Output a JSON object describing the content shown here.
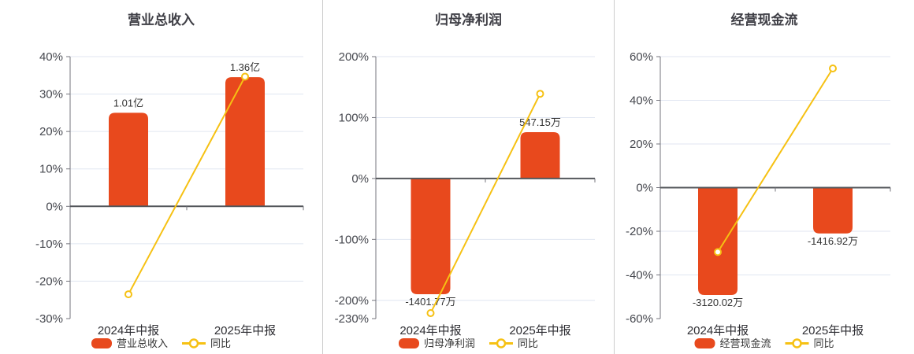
{
  "page": {
    "background": "#ffffff",
    "divider_color": "#cccccc"
  },
  "colors": {
    "bar": "#E8491D",
    "line": "#F6C113",
    "marker_fill": "#ffffff",
    "zero_axis": "#54575B",
    "grid": "#E0E6F1",
    "axis": "#75757D",
    "ytick_text": "#46484F",
    "xlabel_text": "#2E2E33",
    "value_text": "#333333",
    "title_text": "#3F3F46"
  },
  "chart_data": [
    {
      "type": "bar",
      "title": "营业总收入",
      "categories": [
        "2024年中报",
        "2025年中报"
      ],
      "ylim": [
        -30,
        40
      ],
      "yticks": [
        40,
        30,
        20,
        10,
        0,
        -10,
        -20,
        -30
      ],
      "ytick_labels": [
        "40%",
        "30%",
        "20%",
        "10%",
        "0%",
        "-10%",
        "-20%",
        "-30%"
      ],
      "grid": "on",
      "legend_position": "bottom",
      "bar_series": {
        "name": "营业总收入",
        "value_labels": [
          "1.01亿",
          "1.36亿"
        ],
        "plotted_extent_pct": [
          25,
          34.5
        ]
      },
      "line_series": {
        "name": "同比",
        "values_pct": [
          -23.5,
          34.65
        ]
      }
    },
    {
      "type": "bar",
      "title": "归母净利润",
      "categories": [
        "2024年中报",
        "2025年中报"
      ],
      "ylim": [
        -230,
        200
      ],
      "yticks": [
        200,
        100,
        0,
        -100,
        -200,
        -230
      ],
      "ytick_labels": [
        "200%",
        "100%",
        "0%",
        "-100%",
        "-200%",
        "-230%"
      ],
      "grid": "on",
      "legend_position": "bottom",
      "bar_series": {
        "name": "归母净利润",
        "value_labels": [
          "-1401.77万",
          "547.15万"
        ],
        "plotted_extent_pct": [
          -190,
          76
        ]
      },
      "line_series": {
        "name": "同比",
        "values_pct": [
          -221,
          139.03
        ]
      }
    },
    {
      "type": "bar",
      "title": "经营现金流",
      "categories": [
        "2024年中报",
        "2025年中报"
      ],
      "ylim": [
        -60,
        60
      ],
      "yticks": [
        60,
        40,
        20,
        0,
        -20,
        -40,
        -60
      ],
      "ytick_labels": [
        "60%",
        "40%",
        "20%",
        "0%",
        "-20%",
        "-40%",
        "-60%"
      ],
      "grid": "on",
      "legend_position": "bottom",
      "bar_series": {
        "name": "经营现金流",
        "value_labels": [
          "-3120.02万",
          "-1416.92万"
        ],
        "plotted_extent_pct": [
          -49.2,
          -21
        ]
      },
      "line_series": {
        "name": "同比",
        "values_pct": [
          -29.5,
          54.59
        ]
      }
    }
  ]
}
